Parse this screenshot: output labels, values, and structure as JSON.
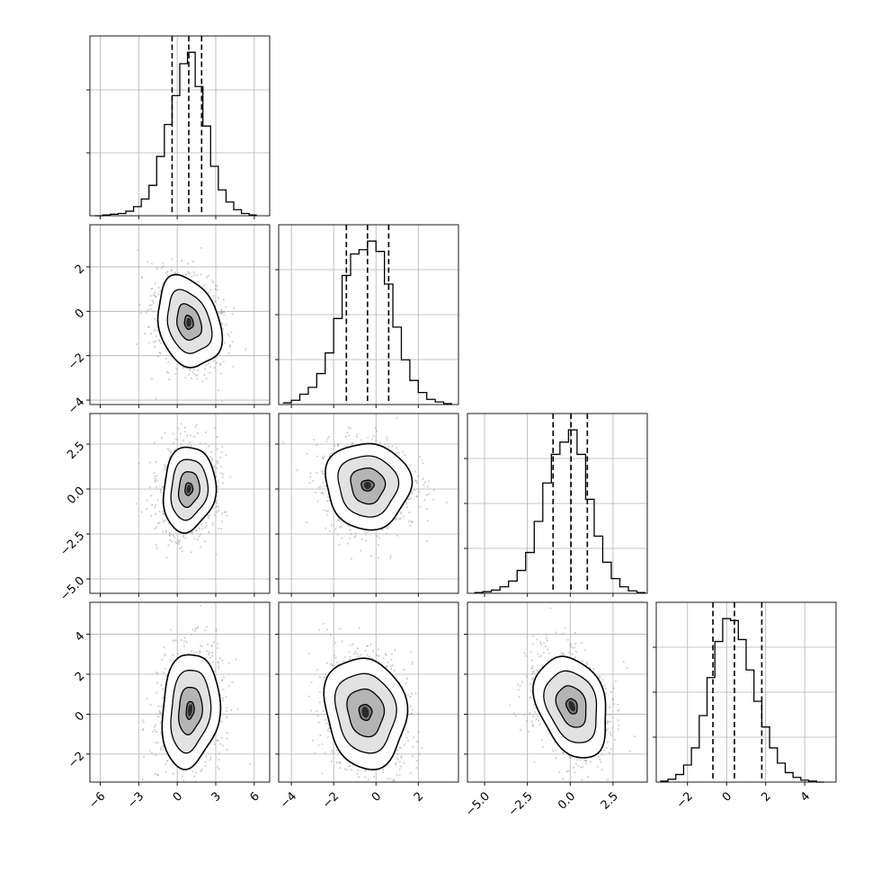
{
  "chart_data": {
    "type": "corner",
    "parameters": 4,
    "grid": true,
    "histograms": [
      {
        "param": 0,
        "xlim": [
          -6.8,
          7.2
        ],
        "bins": [
          -6.4,
          -5.8,
          -5.2,
          -4.6,
          -4.0,
          -3.4,
          -2.8,
          -2.2,
          -1.6,
          -1.0,
          -0.4,
          0.2,
          0.8,
          1.4,
          2.0,
          2.6,
          3.2,
          3.8,
          4.4,
          5.0,
          5.6,
          6.2
        ],
        "counts": [
          0,
          1,
          2,
          3,
          6,
          12,
          22,
          40,
          78,
          120,
          158,
          200,
          215,
          170,
          118,
          65,
          34,
          18,
          8,
          3,
          1
        ],
        "quantiles": [
          -0.4,
          0.9,
          1.9
        ]
      },
      {
        "param": 1,
        "xlim": [
          -4.6,
          3.9
        ],
        "bins": [
          -4.4,
          -4.0,
          -3.6,
          -3.2,
          -2.8,
          -2.4,
          -2.0,
          -1.6,
          -1.2,
          -0.8,
          -0.4,
          0.0,
          0.4,
          0.8,
          1.2,
          1.6,
          2.0,
          2.4,
          2.8,
          3.2,
          3.6
        ],
        "counts": [
          2,
          5,
          12,
          20,
          36,
          60,
          100,
          150,
          175,
          180,
          190,
          178,
          140,
          90,
          52,
          28,
          14,
          6,
          3,
          1
        ],
        "quantiles": [
          -1.4,
          -0.4,
          0.6
        ]
      },
      {
        "param": 2,
        "xlim": [
          -6.0,
          4.5
        ],
        "bins": [
          -5.6,
          -5.1,
          -4.6,
          -4.1,
          -3.6,
          -3.1,
          -2.6,
          -2.1,
          -1.6,
          -1.1,
          -0.6,
          -0.1,
          0.4,
          0.9,
          1.4,
          1.9,
          2.4,
          2.9,
          3.4,
          3.9,
          4.4
        ],
        "counts": [
          1,
          2,
          4,
          8,
          15,
          28,
          50,
          88,
          135,
          170,
          185,
          200,
          170,
          115,
          70,
          38,
          18,
          8,
          3,
          1
        ],
        "quantiles": [
          -1.0,
          0.05,
          1.0
        ]
      },
      {
        "param": 3,
        "xlim": [
          -3.6,
          5.6
        ],
        "bins": [
          -3.4,
          -3.0,
          -2.6,
          -2.2,
          -1.8,
          -1.4,
          -1.0,
          -0.6,
          -0.2,
          0.2,
          0.6,
          1.0,
          1.4,
          1.8,
          2.2,
          2.6,
          3.0,
          3.4,
          3.8,
          4.2,
          4.6,
          5.0
        ],
        "counts": [
          1,
          3,
          8,
          18,
          36,
          70,
          110,
          148,
          172,
          170,
          150,
          118,
          85,
          58,
          36,
          20,
          10,
          5,
          2,
          1,
          0
        ],
        "quantiles": [
          -0.7,
          0.4,
          1.8
        ]
      }
    ],
    "ylims": {
      "1": [
        -4.2,
        3.9
      ],
      "2": [
        -5.8,
        4.2
      ],
      "3": [
        -3.4,
        5.6
      ]
    },
    "contour_panels": [
      {
        "x": 0,
        "y": 1,
        "center": [
          0.9,
          -0.5
        ],
        "levels": [
          [
            2.6,
            1.9,
            -0.45
          ],
          [
            1.8,
            1.3,
            -0.45
          ],
          [
            1.0,
            0.75,
            -0.45
          ],
          [
            0.35,
            0.3,
            -0.45
          ]
        ]
      },
      {
        "x": 0,
        "y": 2,
        "center": [
          0.9,
          0.0
        ],
        "levels": [
          [
            2.0,
            2.4,
            -0.3
          ],
          [
            1.4,
            1.7,
            -0.3
          ],
          [
            0.8,
            1.0,
            -0.3
          ],
          [
            0.3,
            0.35,
            -0.3
          ]
        ]
      },
      {
        "x": 1,
        "y": 2,
        "center": [
          -0.4,
          0.2
        ],
        "levels": [
          [
            2.0,
            2.4,
            0.1
          ],
          [
            1.4,
            1.7,
            0.1
          ],
          [
            0.8,
            1.0,
            0.1
          ],
          [
            0.3,
            0.3,
            0.1
          ]
        ]
      },
      {
        "x": 0,
        "y": 3,
        "center": [
          1.0,
          0.2
        ],
        "levels": [
          [
            2.2,
            2.9,
            -0.25
          ],
          [
            1.5,
            2.1,
            -0.25
          ],
          [
            0.9,
            1.2,
            -0.25
          ],
          [
            0.3,
            0.45,
            -0.25
          ]
        ]
      },
      {
        "x": 1,
        "y": 3,
        "center": [
          -0.5,
          0.1
        ],
        "levels": [
          [
            1.9,
            2.8,
            0.15
          ],
          [
            1.4,
            2.0,
            0.15
          ],
          [
            0.85,
            1.2,
            0.15
          ],
          [
            0.3,
            0.4,
            0.15
          ]
        ]
      },
      {
        "x": 2,
        "y": 3,
        "center": [
          0.1,
          0.4
        ],
        "levels": [
          [
            1.9,
            2.7,
            0.5
          ],
          [
            1.4,
            1.9,
            0.5
          ],
          [
            0.8,
            1.1,
            0.5
          ],
          [
            0.3,
            0.4,
            0.5
          ]
        ]
      }
    ],
    "ticks": {
      "x0": {
        "values": [
          -6,
          -3,
          0,
          3,
          6
        ],
        "labels": [
          "−6",
          "−3",
          "0",
          "3",
          "6"
        ]
      },
      "x1": {
        "values": [
          -4,
          -2,
          0,
          2
        ],
        "labels": [
          "−4",
          "−2",
          "0",
          "2"
        ]
      },
      "x2": {
        "values": [
          -5.0,
          -2.5,
          0.0,
          2.5
        ],
        "labels": [
          "−5.0",
          "−2.5",
          "0.0",
          "2.5"
        ]
      },
      "x3": {
        "values": [
          -2,
          0,
          2,
          4
        ],
        "labels": [
          "−2",
          "0",
          "2",
          "4"
        ]
      },
      "y1": {
        "values": [
          -4,
          -2,
          0,
          2
        ],
        "labels": [
          "−4",
          "−2",
          "0",
          "2"
        ]
      },
      "y2": {
        "values": [
          -5.0,
          -2.5,
          0.0,
          2.5
        ],
        "labels": [
          "−5.0",
          "−2.5",
          "0.0",
          "2.5"
        ]
      },
      "y3": {
        "values": [
          -2,
          0,
          2,
          4
        ],
        "labels": [
          "−2",
          "0",
          "2",
          "4"
        ]
      }
    },
    "colors": {
      "line": "#000000",
      "grid": "#b0b0b0",
      "points": "#9a9a9a",
      "density": "#000000"
    }
  }
}
